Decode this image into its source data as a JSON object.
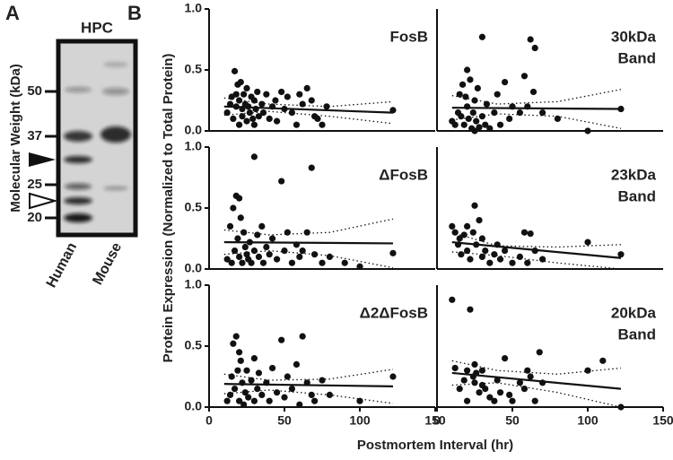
{
  "panel_a": {
    "label": "A",
    "title": "HPC",
    "ylabel": "Molecular Weight (kDa)",
    "markers": [
      50,
      37,
      25,
      20
    ],
    "lanes": [
      "Human",
      "Mouse"
    ]
  },
  "panel_b": {
    "label": "B",
    "xlabel": "Postmortem Interval (hr)",
    "ylabel": "Protein Expression (Normalized to Total Protein)"
  },
  "chart_data": [
    {
      "type": "scatter",
      "title": [
        "FosB"
      ],
      "xlim": [
        0,
        150
      ],
      "ylim": [
        0,
        1
      ],
      "yticks": [
        {
          "value": 0,
          "label": "0.0"
        },
        {
          "value": 0.5,
          "label": "0.5"
        },
        {
          "value": 1,
          "label": "1.0"
        }
      ],
      "x": [
        12,
        14,
        15,
        16,
        17,
        18,
        18,
        19,
        20,
        20,
        21,
        22,
        22,
        23,
        24,
        25,
        25,
        26,
        27,
        28,
        29,
        30,
        30,
        31,
        32,
        33,
        35,
        36,
        38,
        40,
        42,
        44,
        45,
        48,
        50,
        52,
        55,
        58,
        60,
        62,
        65,
        68,
        70,
        72,
        75,
        78,
        122
      ],
      "y": [
        0.15,
        0.22,
        0.28,
        0.1,
        0.49,
        0.3,
        0.2,
        0.38,
        0.05,
        0.25,
        0.4,
        0.18,
        0.12,
        0.3,
        0.22,
        0.08,
        0.35,
        0.2,
        0.15,
        0.28,
        0.1,
        0.25,
        0.05,
        0.18,
        0.32,
        0.12,
        0.22,
        0.15,
        0.3,
        0.1,
        0.2,
        0.25,
        0.08,
        0.32,
        0.18,
        0.28,
        0.15,
        0.05,
        0.3,
        0.22,
        0.35,
        0.25,
        0.12,
        0.1,
        0.05,
        0.2,
        0.17
      ],
      "fit": {
        "x": [
          10,
          122
        ],
        "y": [
          0.2,
          0.15
        ]
      },
      "ci_upper": {
        "x": [
          10,
          40,
          80,
          122
        ],
        "y": [
          0.27,
          0.22,
          0.2,
          0.24
        ]
      },
      "ci_lower": {
        "x": [
          10,
          40,
          80,
          122
        ],
        "y": [
          0.13,
          0.16,
          0.12,
          0.06
        ]
      }
    },
    {
      "type": "scatter",
      "title": [
        "30kDa",
        "Band"
      ],
      "xlim": [
        0,
        150
      ],
      "ylim": [
        0,
        1
      ],
      "x": [
        10,
        12,
        14,
        15,
        16,
        17,
        18,
        19,
        20,
        20,
        21,
        22,
        23,
        24,
        25,
        25,
        26,
        27,
        28,
        30,
        30,
        32,
        33,
        35,
        38,
        40,
        42,
        45,
        48,
        50,
        55,
        58,
        60,
        62,
        64,
        65,
        70,
        80,
        100,
        122
      ],
      "y": [
        0.08,
        0.05,
        0.15,
        0.3,
        0.12,
        0.38,
        0.05,
        0.28,
        0.5,
        0.2,
        0.1,
        0.42,
        0.02,
        0.15,
        0.25,
        0.0,
        0.08,
        0.35,
        0.03,
        0.77,
        0.12,
        0.05,
        0.22,
        0.02,
        0.15,
        0.3,
        0.05,
        0.4,
        0.1,
        0.2,
        0.15,
        0.45,
        0.2,
        0.75,
        0.32,
        0.68,
        0.15,
        0.1,
        0.0,
        0.18
      ],
      "fit": {
        "x": [
          10,
          122
        ],
        "y": [
          0.19,
          0.18
        ]
      },
      "ci_upper": {
        "x": [
          10,
          40,
          80,
          122
        ],
        "y": [
          0.29,
          0.22,
          0.24,
          0.34
        ]
      },
      "ci_lower": {
        "x": [
          10,
          40,
          80,
          122
        ],
        "y": [
          0.09,
          0.14,
          0.12,
          0.02
        ]
      }
    },
    {
      "type": "scatter",
      "title": [
        "ΔFosB"
      ],
      "xlim": [
        0,
        150
      ],
      "ylim": [
        0,
        1
      ],
      "yticks": [
        {
          "value": 0,
          "label": "0.0"
        },
        {
          "value": 0.5,
          "label": "0.5"
        },
        {
          "value": 1,
          "label": "1.0"
        }
      ],
      "x": [
        12,
        14,
        15,
        16,
        17,
        18,
        19,
        20,
        20,
        21,
        22,
        23,
        24,
        25,
        26,
        27,
        28,
        30,
        30,
        32,
        33,
        35,
        36,
        38,
        40,
        42,
        45,
        48,
        50,
        52,
        55,
        58,
        60,
        62,
        65,
        68,
        70,
        75,
        80,
        90,
        100,
        122
      ],
      "y": [
        0.08,
        0.35,
        0.05,
        0.5,
        0.15,
        0.6,
        0.25,
        0.58,
        0.1,
        0.42,
        0.05,
        0.3,
        0.18,
        0.12,
        0.08,
        0.22,
        0.05,
        0.92,
        0.15,
        0.28,
        0.1,
        0.35,
        0.05,
        0.18,
        0.12,
        0.25,
        0.08,
        0.72,
        0.15,
        0.3,
        0.05,
        0.2,
        0.1,
        0.15,
        0.3,
        0.83,
        0.12,
        0.05,
        0.1,
        0.05,
        0.02,
        0.13
      ],
      "fit": {
        "x": [
          10,
          122
        ],
        "y": [
          0.22,
          0.21
        ]
      },
      "ci_upper": {
        "x": [
          10,
          40,
          80,
          122
        ],
        "y": [
          0.32,
          0.28,
          0.3,
          0.41
        ]
      },
      "ci_lower": {
        "x": [
          10,
          40,
          80,
          122
        ],
        "y": [
          0.12,
          0.15,
          0.11,
          0.01
        ]
      }
    },
    {
      "type": "scatter",
      "title": [
        "23kDa",
        "Band"
      ],
      "xlim": [
        0,
        150
      ],
      "ylim": [
        0,
        1
      ],
      "x": [
        10,
        12,
        14,
        15,
        16,
        18,
        20,
        20,
        22,
        24,
        25,
        26,
        28,
        30,
        30,
        32,
        35,
        38,
        40,
        42,
        45,
        50,
        55,
        58,
        60,
        62,
        65,
        70,
        100,
        122
      ],
      "y": [
        0.35,
        0.3,
        0.2,
        0.25,
        0.12,
        0.28,
        0.15,
        0.35,
        0.08,
        0.3,
        0.52,
        0.2,
        0.4,
        0.1,
        0.25,
        0.15,
        0.05,
        0.12,
        0.2,
        0.08,
        0.15,
        0.05,
        0.1,
        0.3,
        0.05,
        0.29,
        0.15,
        0.08,
        0.22,
        0.12
      ],
      "fit": {
        "x": [
          10,
          122
        ],
        "y": [
          0.22,
          0.09
        ]
      },
      "ci_upper": {
        "x": [
          10,
          40,
          80,
          122
        ],
        "y": [
          0.3,
          0.19,
          0.18,
          0.2
        ]
      },
      "ci_lower": {
        "x": [
          10,
          40,
          80,
          122
        ],
        "y": [
          0.14,
          0.11,
          0.05,
          0.0
        ]
      }
    },
    {
      "type": "scatter",
      "title": [
        "Δ2ΔFosB"
      ],
      "xlim": [
        0,
        150
      ],
      "ylim": [
        0,
        1
      ],
      "yticks": [
        {
          "value": 0,
          "label": "0.0"
        },
        {
          "value": 0.5,
          "label": "0.5"
        },
        {
          "value": 1,
          "label": "1.0"
        }
      ],
      "xticks": [
        0,
        50,
        100,
        150
      ],
      "x": [
        12,
        14,
        15,
        16,
        17,
        18,
        19,
        20,
        20,
        21,
        22,
        23,
        24,
        25,
        26,
        28,
        30,
        30,
        32,
        33,
        35,
        38,
        40,
        42,
        45,
        48,
        50,
        52,
        55,
        58,
        60,
        62,
        65,
        68,
        70,
        75,
        80,
        100,
        122
      ],
      "y": [
        0.05,
        0.1,
        0.25,
        0.52,
        0.15,
        0.58,
        0.3,
        0.45,
        0.05,
        0.38,
        0.2,
        0.02,
        0.12,
        0.3,
        0.08,
        0.22,
        0.4,
        0.05,
        0.15,
        0.28,
        0.1,
        0.2,
        0.05,
        0.32,
        0.12,
        0.55,
        0.08,
        0.25,
        0.15,
        0.35,
        0.02,
        0.58,
        0.2,
        0.1,
        0.05,
        0.22,
        0.1,
        0.05,
        0.25
      ],
      "fit": {
        "x": [
          10,
          122
        ],
        "y": [
          0.19,
          0.17
        ]
      },
      "ci_upper": {
        "x": [
          10,
          40,
          80,
          122
        ],
        "y": [
          0.27,
          0.22,
          0.23,
          0.31
        ]
      },
      "ci_lower": {
        "x": [
          10,
          40,
          80,
          122
        ],
        "y": [
          0.11,
          0.14,
          0.1,
          0.03
        ]
      }
    },
    {
      "type": "scatter",
      "title": [
        "20kDa",
        "Band"
      ],
      "xlim": [
        0,
        150
      ],
      "ylim": [
        0,
        1
      ],
      "xticks": [
        0,
        50,
        100,
        150
      ],
      "x": [
        10,
        12,
        15,
        18,
        20,
        20,
        22,
        24,
        25,
        25,
        26,
        28,
        30,
        30,
        32,
        35,
        38,
        40,
        42,
        45,
        48,
        50,
        55,
        58,
        60,
        62,
        65,
        68,
        70,
        100,
        110,
        122
      ],
      "y": [
        0.88,
        0.32,
        0.15,
        0.22,
        0.05,
        0.3,
        0.8,
        0.25,
        0.2,
        0.35,
        0.28,
        0.12,
        0.18,
        0.3,
        0.15,
        0.08,
        0.05,
        0.22,
        0.12,
        0.4,
        0.1,
        0.05,
        0.2,
        0.15,
        0.3,
        0.25,
        0.05,
        0.45,
        0.2,
        0.3,
        0.38,
        0.0
      ],
      "fit": {
        "x": [
          10,
          122
        ],
        "y": [
          0.28,
          0.15
        ]
      },
      "ci_upper": {
        "x": [
          10,
          40,
          80,
          122
        ],
        "y": [
          0.38,
          0.3,
          0.27,
          0.32
        ]
      },
      "ci_lower": {
        "x": [
          10,
          40,
          80,
          122
        ],
        "y": [
          0.18,
          0.2,
          0.12,
          0.0
        ]
      }
    }
  ]
}
